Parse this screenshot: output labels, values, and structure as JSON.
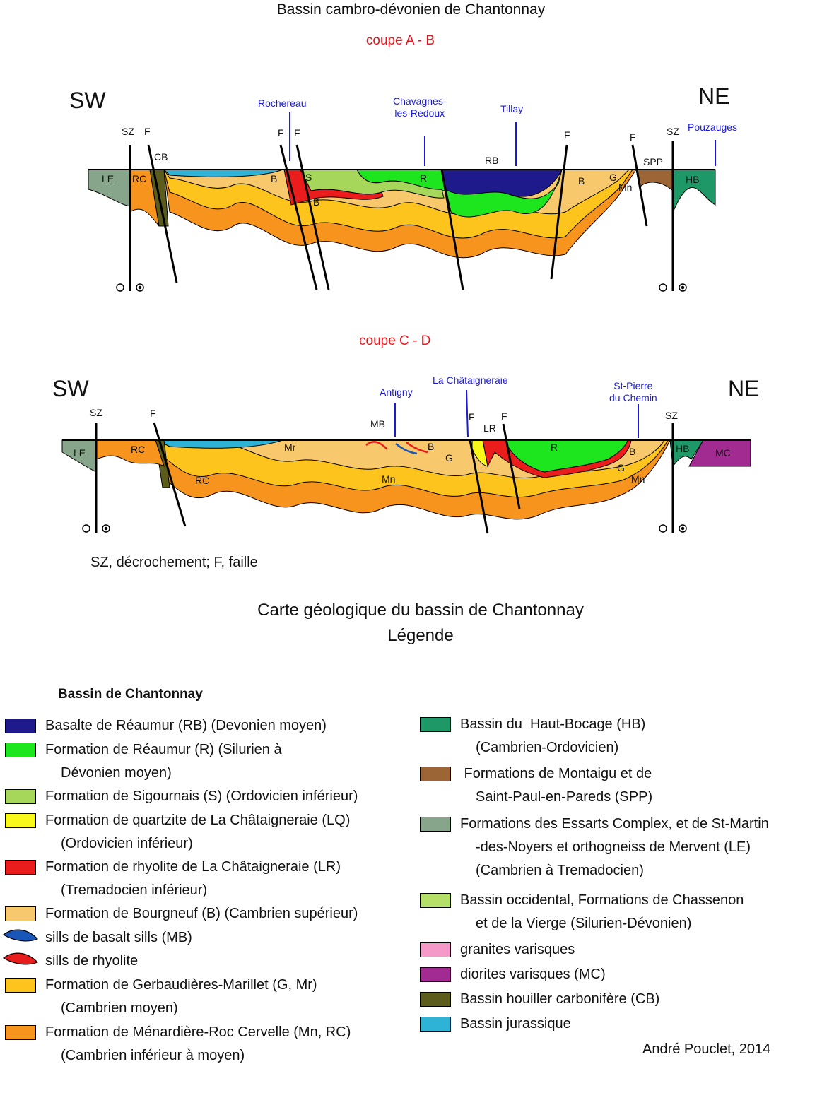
{
  "title": "Bassin cambro-dévonien de Chantonnay",
  "section_ab": {
    "label": "coupe A - B",
    "left_dir": "SW",
    "right_dir": "NE",
    "places": [
      "Rochereau",
      "Chavagnes-\nles-Redoux",
      "Tillay",
      "Pouzauges"
    ],
    "fault_labels": [
      "SZ",
      "F",
      "CB",
      "F",
      "F",
      "F",
      "F",
      "SZ"
    ],
    "unit_labels": [
      "LE",
      "RC",
      "B",
      "S",
      "B",
      "R",
      "RB",
      "B",
      "G",
      "Mn",
      "SPP",
      "HB"
    ]
  },
  "section_cd": {
    "label": "coupe C - D",
    "left_dir": "SW",
    "right_dir": "NE",
    "places": [
      "Antigny",
      "La Châtaigneraie",
      "St-Pierre\ndu Chemin"
    ],
    "fault_labels": [
      "SZ",
      "F",
      "MB",
      "F",
      "F",
      "LR",
      "SZ"
    ],
    "unit_labels": [
      "LE",
      "RC",
      "Mr",
      "RC",
      "B",
      "G",
      "Mn",
      "R",
      "B",
      "G",
      "Mn",
      "HB",
      "MC"
    ]
  },
  "abbrev_note": "SZ, décrochement; F, faille",
  "map_title_line1": "Carte géologique du bassin de Chantonnay",
  "map_title_line2": "Légende",
  "legend": {
    "heading": "Bassin de Chantonnay",
    "left": [
      {
        "color": "#1f1a8c",
        "lines": [
          "Basalte de Réaumur (RB) (Devonien moyen)"
        ]
      },
      {
        "color": "#1ee61e",
        "lines": [
          "Formation de Réaumur (R) (Silurien à",
          "Dévonien moyen)"
        ]
      },
      {
        "color": "#a6d65a",
        "lines": [
          "Formation de Sigournais (S) (Ordovicien inférieur)"
        ]
      },
      {
        "color": "#f8f81a",
        "lines": [
          "Formation de quartzite de La Châtaigneraie (LQ)",
          "(Ordovicien inférieur)"
        ]
      },
      {
        "color": "#ea1c1c",
        "lines": [
          "Formation de rhyolite de La Châtaigneraie (LR)",
          "(Tremadocien inférieur)"
        ]
      },
      {
        "color": "#f7c96c",
        "lines": [
          "Formation de Bourgneuf (B) (Cambrien supérieur)"
        ]
      },
      {
        "color": "#1a56b8",
        "lines": [
          "sills de basalt sills (MB)"
        ]
      },
      {
        "color": "#e81c1c",
        "lines": [
          "sills de rhyolite"
        ]
      },
      {
        "color": "#fcc41c",
        "lines": [
          "Formation de Gerbaudières-Marillet (G, Mr)",
          "(Cambrien moyen)"
        ]
      },
      {
        "color": "#f7941d",
        "lines": [
          "Formation de Ménardière-Roc Cervelle (Mn, RC)",
          "(Cambrien inférieur à moyen)"
        ]
      }
    ],
    "right": [
      {
        "color": "#1d9866",
        "lines": [
          "Bassin du  Haut-Bocage (HB)",
          "(Cambrien-Ordovicien)"
        ]
      },
      {
        "color": "#9c6535",
        "lines": [
          " Formations de Montaigu et de",
          "Saint-Paul-en-Pareds (SPP)"
        ]
      },
      {
        "color": "#86a58a",
        "lines": [
          "Formations des Essarts Complex, et de St-Martin",
          "-des-Noyers et orthogneiss de Mervent (LE)",
          "(Cambrien à Tremadocien)"
        ]
      },
      {
        "color": "#b4e06a",
        "lines": [
          "Bassin occidental, Formations de Chassenon",
          "et de la Vierge (Silurien-Dévonien)"
        ]
      },
      {
        "color": "#f59ac8",
        "lines": [
          "granites varisques"
        ]
      },
      {
        "color": "#a22b91",
        "lines": [
          "diorites varisques (MC)"
        ]
      },
      {
        "color": "#5c5c1c",
        "lines": [
          "Bassin houiller carbonifère (CB)"
        ]
      },
      {
        "color": "#2eb2d6",
        "lines": [
          "Bassin jurassique"
        ]
      }
    ]
  },
  "author": "André Pouclet, 2014"
}
